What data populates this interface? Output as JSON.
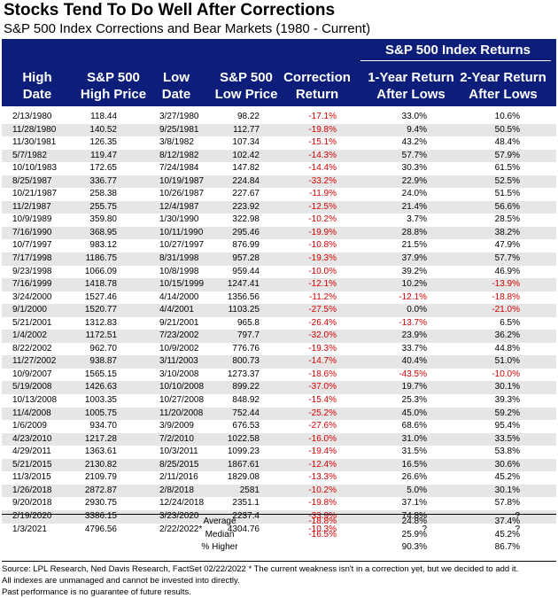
{
  "chart_data": {
    "type": "table",
    "title": "Stocks Tend To Do Well After Corrections",
    "subtitle": "S&P 500 Index Corrections and Bear Markets (1980 - Current)",
    "group_header": "S&P 500 Index Returns",
    "columns": [
      "High Date",
      "S&P 500 High Price",
      "Low Date",
      "S&P 500 Low Price",
      "Correction Return",
      "1-Year Return After Lows",
      "2-Year Return After Lows"
    ],
    "rows": [
      [
        "2/13/1980",
        "118.44",
        "3/27/1980",
        "98.22",
        "-17.1%",
        "33.0%",
        "10.6%"
      ],
      [
        "11/28/1980",
        "140.52",
        "9/25/1981",
        "112.77",
        "-19.8%",
        "9.4%",
        "50.5%"
      ],
      [
        "11/30/1981",
        "126.35",
        "3/8/1982",
        "107.34",
        "-15.1%",
        "43.2%",
        "48.4%"
      ],
      [
        "5/7/1982",
        "119.47",
        "8/12/1982",
        "102.42",
        "-14.3%",
        "57.7%",
        "57.9%"
      ],
      [
        "10/10/1983",
        "172.65",
        "7/24/1984",
        "147.82",
        "-14.4%",
        "30.3%",
        "61.5%"
      ],
      [
        "8/25/1987",
        "336.77",
        "10/19/1987",
        "224.84",
        "-33.2%",
        "22.9%",
        "52.5%"
      ],
      [
        "10/21/1987",
        "258.38",
        "10/26/1987",
        "227.67",
        "-11.9%",
        "24.0%",
        "51.5%"
      ],
      [
        "11/2/1987",
        "255.75",
        "12/4/1987",
        "223.92",
        "-12.5%",
        "21.4%",
        "56.6%"
      ],
      [
        "10/9/1989",
        "359.80",
        "1/30/1990",
        "322.98",
        "-10.2%",
        "3.7%",
        "28.5%"
      ],
      [
        "7/16/1990",
        "368.95",
        "10/11/1990",
        "295.46",
        "-19.9%",
        "28.8%",
        "38.2%"
      ],
      [
        "10/7/1997",
        "983.12",
        "10/27/1997",
        "876.99",
        "-10.8%",
        "21.5%",
        "47.9%"
      ],
      [
        "7/17/1998",
        "1186.75",
        "8/31/1998",
        "957.28",
        "-19.3%",
        "37.9%",
        "57.7%"
      ],
      [
        "9/23/1998",
        "1066.09",
        "10/8/1998",
        "959.44",
        "-10.0%",
        "39.2%",
        "46.9%"
      ],
      [
        "7/16/1999",
        "1418.78",
        "10/15/1999",
        "1247.41",
        "-12.1%",
        "10.2%",
        "-13.9%"
      ],
      [
        "3/24/2000",
        "1527.46",
        "4/14/2000",
        "1356.56",
        "-11.2%",
        "-12.1%",
        "-18.8%"
      ],
      [
        "9/1/2000",
        "1520.77",
        "4/4/2001",
        "1103.25",
        "-27.5%",
        "0.0%",
        "-21.0%"
      ],
      [
        "5/21/2001",
        "1312.83",
        "9/21/2001",
        "965.8",
        "-26.4%",
        "-13.7%",
        "6.5%"
      ],
      [
        "1/4/2002",
        "1172.51",
        "7/23/2002",
        "797.7",
        "-32.0%",
        "23.9%",
        "36.2%"
      ],
      [
        "8/22/2002",
        "962.70",
        "10/9/2002",
        "776.76",
        "-19.3%",
        "33.7%",
        "44.8%"
      ],
      [
        "11/27/2002",
        "938.87",
        "3/11/2003",
        "800.73",
        "-14.7%",
        "40.4%",
        "51.0%"
      ],
      [
        "10/9/2007",
        "1565.15",
        "3/10/2008",
        "1273.37",
        "-18.6%",
        "-43.5%",
        "-10.0%"
      ],
      [
        "5/19/2008",
        "1426.63",
        "10/10/2008",
        "899.22",
        "-37.0%",
        "19.7%",
        "30.1%"
      ],
      [
        "10/13/2008",
        "1003.35",
        "10/27/2008",
        "848.92",
        "-15.4%",
        "25.3%",
        "39.3%"
      ],
      [
        "11/4/2008",
        "1005.75",
        "11/20/2008",
        "752.44",
        "-25.2%",
        "45.0%",
        "59.2%"
      ],
      [
        "1/6/2009",
        "934.70",
        "3/9/2009",
        "676.53",
        "-27.6%",
        "68.6%",
        "95.4%"
      ],
      [
        "4/23/2010",
        "1217.28",
        "7/2/2010",
        "1022.58",
        "-16.0%",
        "31.0%",
        "33.5%"
      ],
      [
        "4/29/2011",
        "1363.61",
        "10/3/2011",
        "1099.23",
        "-19.4%",
        "31.5%",
        "53.8%"
      ],
      [
        "5/21/2015",
        "2130.82",
        "8/25/2015",
        "1867.61",
        "-12.4%",
        "16.5%",
        "30.6%"
      ],
      [
        "11/3/2015",
        "2109.79",
        "2/11/2016",
        "1829.08",
        "-13.3%",
        "26.6%",
        "45.2%"
      ],
      [
        "1/26/2018",
        "2872.87",
        "2/8/2018",
        "2581",
        "-10.2%",
        "5.0%",
        "30.1%"
      ],
      [
        "9/20/2018",
        "2930.75",
        "12/24/2018",
        "2351.1",
        "-19.8%",
        "37.1%",
        "57.8%"
      ],
      [
        "2/19/2020",
        "3386.15",
        "3/23/2020",
        "2237.4",
        "-33.9%",
        "74.8%",
        "?"
      ],
      [
        "1/3/2021",
        "4796.56",
        "2/22/2022*",
        "4304.76",
        "-10.3%",
        "?",
        "?"
      ]
    ],
    "summary": [
      {
        "label": "Average",
        "correction": "-18.8%",
        "one_year": "24.8%",
        "two_year": "37.4%"
      },
      {
        "label": "Median",
        "correction": "-16.5%",
        "one_year": "25.9%",
        "two_year": "45.2%"
      },
      {
        "label": "% Higher",
        "correction": "",
        "one_year": "90.3%",
        "two_year": "86.7%"
      }
    ],
    "colors": {
      "header_bg": "#0d1e7a",
      "negative": "#d40000",
      "alt_row": "#e6e6e6"
    }
  },
  "footer": {
    "line1": "Source: LPL Research, Ned Davis Research, FactSet 02/22/2022    * The current weakness isn't in a correction yet, but we decided to add it.",
    "line2": "All indexes are unmanaged and cannot be invested into directly.",
    "line3": "Past performance is no guarantee of future results."
  }
}
